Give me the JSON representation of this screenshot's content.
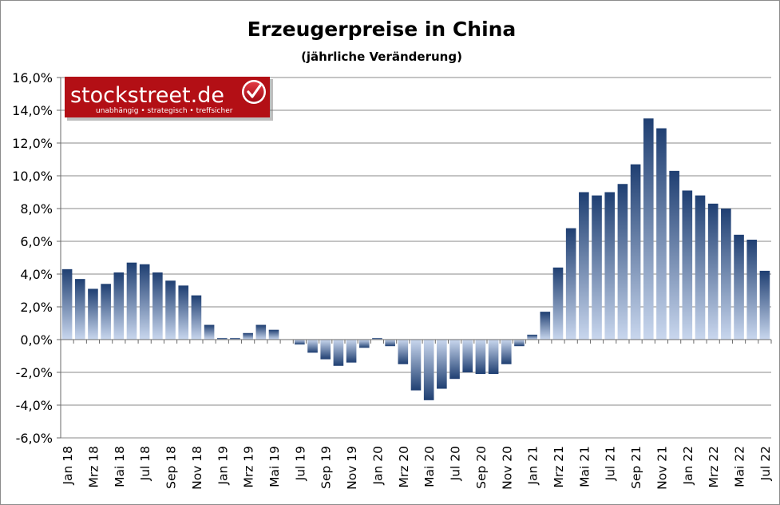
{
  "chart_data": {
    "type": "bar",
    "title": "Erzeugerpreise in China",
    "subtitle": "(jährliche Veränderung)",
    "xlabel": "",
    "ylabel": "",
    "ylim": [
      -6,
      16
    ],
    "ytick_step": 2,
    "ytick_labels": [
      "-6,0%",
      "-4,0%",
      "-2,0%",
      "0,0%",
      "2,0%",
      "4,0%",
      "6,0%",
      "8,0%",
      "10,0%",
      "12,0%",
      "14,0%",
      "16,0%"
    ],
    "grid": true,
    "legend": "none",
    "categories": [
      "Jan 18",
      "Feb 18",
      "Mrz 18",
      "Apr 18",
      "Mai 18",
      "Jun 18",
      "Jul 18",
      "Aug 18",
      "Sep 18",
      "Okt 18",
      "Nov 18",
      "Dez 18",
      "Jan 19",
      "Feb 19",
      "Mrz 19",
      "Apr 19",
      "Mai 19",
      "Jun 19",
      "Jul 19",
      "Aug 19",
      "Sep 19",
      "Okt 19",
      "Nov 19",
      "Dez 19",
      "Jan 20",
      "Feb 20",
      "Mrz 20",
      "Apr 20",
      "Mai 20",
      "Jun 20",
      "Jul 20",
      "Aug 20",
      "Sep 20",
      "Okt 20",
      "Nov 20",
      "Dez 20",
      "Jan 21",
      "Feb 21",
      "Mrz 21",
      "Apr 21",
      "Mai 21",
      "Jun 21",
      "Jul 21",
      "Aug 21",
      "Sep 21",
      "Okt 21",
      "Nov 21",
      "Dez 21",
      "Jan 22",
      "Feb 22",
      "Mrz 22",
      "Apr 22",
      "Mai 22",
      "Jun 22",
      "Jul 22"
    ],
    "visible_tick_labels": [
      "Jan 18",
      "Mrz 18",
      "Mai 18",
      "Jul 18",
      "Sep 18",
      "Nov 18",
      "Jan 19",
      "Mrz 19",
      "Mai 19",
      "Jul 19",
      "Sep 19",
      "Nov 19",
      "Jan 20",
      "Mrz 20",
      "Mai 20",
      "Jul 20",
      "Sep 20",
      "Nov 20",
      "Jan 21",
      "Mrz 21",
      "Mai 21",
      "Jul 21",
      "Sep 21",
      "Nov 21",
      "Jan 22",
      "Mrz 22",
      "Mai 22",
      "Jul 22"
    ],
    "values": [
      4.3,
      3.7,
      3.1,
      3.4,
      4.1,
      4.7,
      4.6,
      4.1,
      3.6,
      3.3,
      2.7,
      0.9,
      0.1,
      0.1,
      0.4,
      0.9,
      0.6,
      0.0,
      -0.3,
      -0.8,
      -1.2,
      -1.6,
      -1.4,
      -0.5,
      0.1,
      -0.4,
      -1.5,
      -3.1,
      -3.7,
      -3.0,
      -2.4,
      -2.0,
      -2.1,
      -2.1,
      -1.5,
      -0.4,
      0.3,
      1.7,
      4.4,
      6.8,
      9.0,
      8.8,
      9.0,
      9.5,
      10.7,
      13.5,
      12.9,
      10.3,
      9.1,
      8.8,
      8.3,
      8.0,
      6.4,
      6.1,
      4.2
    ],
    "bar_gradient": {
      "top_color": "#1f3f72",
      "bottom_color": "#c9d7ee"
    }
  },
  "logo": {
    "name": "stockstreet.de",
    "tagline": "unabhängig • strategisch • treffsicher",
    "background_color": "#b30f15",
    "check_color": "#c8102e"
  }
}
